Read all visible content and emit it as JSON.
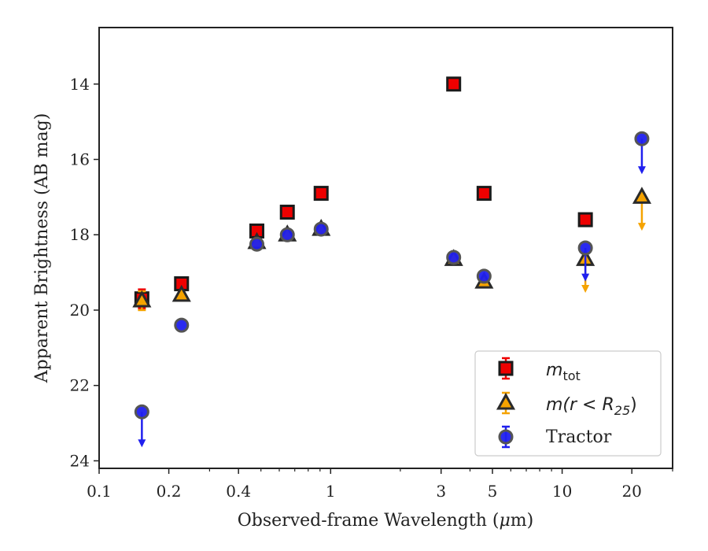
{
  "chart_data": {
    "type": "scatter",
    "xscale": "log",
    "yaxis_inverted": true,
    "xlim": [
      0.1,
      30
    ],
    "ylim": [
      24.2,
      12.5
    ],
    "xlabel_parts": [
      "Observed-frame Wavelength (",
      "μ",
      "m)"
    ],
    "ylabel": "Apparent Brightness (AB mag)",
    "x_major_ticks": [
      {
        "value": 0.1,
        "label": "0.1"
      },
      {
        "value": 0.2,
        "label": "0.2"
      },
      {
        "value": 0.4,
        "label": "0.4"
      },
      {
        "value": 1,
        "label": "1"
      },
      {
        "value": 3,
        "label": "3"
      },
      {
        "value": 5,
        "label": "5"
      },
      {
        "value": 10,
        "label": "10"
      },
      {
        "value": 20,
        "label": "20"
      }
    ],
    "x_minor_ticks": [
      0.3,
      0.5,
      0.6,
      0.7,
      0.8,
      0.9,
      2,
      4,
      6,
      7,
      8,
      9,
      30
    ],
    "y_ticks": [
      14,
      16,
      18,
      20,
      22,
      24
    ],
    "legend_position": "lower-right",
    "series": [
      {
        "key": "mtot",
        "legend_main": "m",
        "legend_sub": "tot",
        "marker": "square",
        "color": "#ee0000",
        "edge": "#1a1a1a",
        "points": [
          {
            "x": 0.153,
            "y": 19.7,
            "err": 0.25
          },
          {
            "x": 0.227,
            "y": 19.3
          },
          {
            "x": 0.48,
            "y": 17.9
          },
          {
            "x": 0.65,
            "y": 17.4
          },
          {
            "x": 0.91,
            "y": 16.9
          },
          {
            "x": 3.4,
            "y": 14.0
          },
          {
            "x": 4.6,
            "y": 16.9
          },
          {
            "x": 12.6,
            "y": 17.6
          }
        ]
      },
      {
        "key": "mr25",
        "legend_main": "m(r < R",
        "legend_sub": "25",
        "legend_tail": ")",
        "marker": "triangle",
        "color": "#f5a300",
        "edge": "#2a2a2a",
        "points": [
          {
            "x": 0.153,
            "y": 19.75,
            "err": 0.25
          },
          {
            "x": 0.227,
            "y": 19.6
          },
          {
            "x": 0.48,
            "y": 18.2
          },
          {
            "x": 0.65,
            "y": 18.0
          },
          {
            "x": 0.91,
            "y": 17.85
          },
          {
            "x": 3.4,
            "y": 18.65
          },
          {
            "x": 4.6,
            "y": 19.25
          },
          {
            "x": 12.6,
            "y": 18.65,
            "limit_to": 19.5
          },
          {
            "x": 22.1,
            "y": 17.0,
            "limit_to": 17.85
          }
        ]
      },
      {
        "key": "tractor",
        "legend_main": "Tractor",
        "marker": "circle",
        "color": "#2020ee",
        "edge": "#555555",
        "points": [
          {
            "x": 0.153,
            "y": 22.7,
            "limit_to": 23.6
          },
          {
            "x": 0.227,
            "y": 20.4
          },
          {
            "x": 0.48,
            "y": 18.25
          },
          {
            "x": 0.65,
            "y": 18.0
          },
          {
            "x": 0.91,
            "y": 17.85
          },
          {
            "x": 3.4,
            "y": 18.6
          },
          {
            "x": 4.6,
            "y": 19.1
          },
          {
            "x": 12.6,
            "y": 18.35,
            "limit_to": 19.2
          },
          {
            "x": 22.1,
            "y": 15.45,
            "limit_to": 16.35
          }
        ]
      }
    ]
  }
}
